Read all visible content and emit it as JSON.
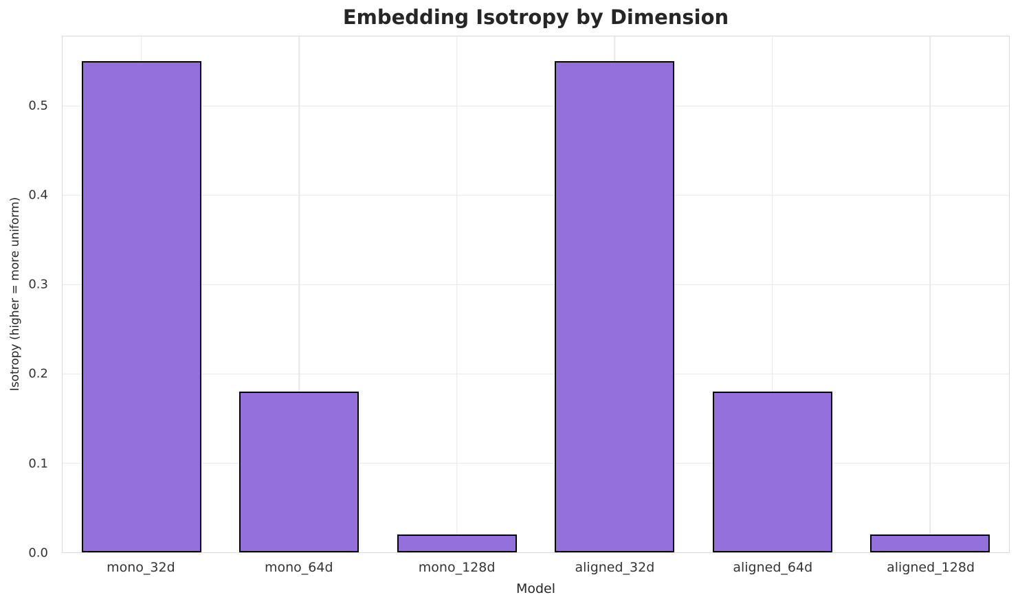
{
  "chart_data": {
    "type": "bar",
    "title": "Embedding Isotropy by Dimension",
    "xlabel": "Model",
    "ylabel": "Isotropy (higher = more uniform)",
    "categories": [
      "mono_32d",
      "mono_64d",
      "mono_128d",
      "aligned_32d",
      "aligned_64d",
      "aligned_128d"
    ],
    "values": [
      0.55,
      0.18,
      0.02,
      0.55,
      0.18,
      0.02
    ],
    "ylim": [
      0,
      0.578
    ],
    "yticks": [
      0.0,
      0.1,
      0.2,
      0.3,
      0.4,
      0.5
    ],
    "ytick_labels": [
      "0.0",
      "0.1",
      "0.2",
      "0.3",
      "0.4",
      "0.5"
    ],
    "grid": true,
    "legend": "none",
    "bar_width_frac": 0.757,
    "bar_color": "#9370DB",
    "bar_edge_color": "#000000",
    "gridline_color": "#e7e7e7",
    "spine_color": "#d9d9d9",
    "title_color": "#262626",
    "tick_label_color": "#333333",
    "axis_label_color": "#262626",
    "background_color": "#ffffff"
  }
}
